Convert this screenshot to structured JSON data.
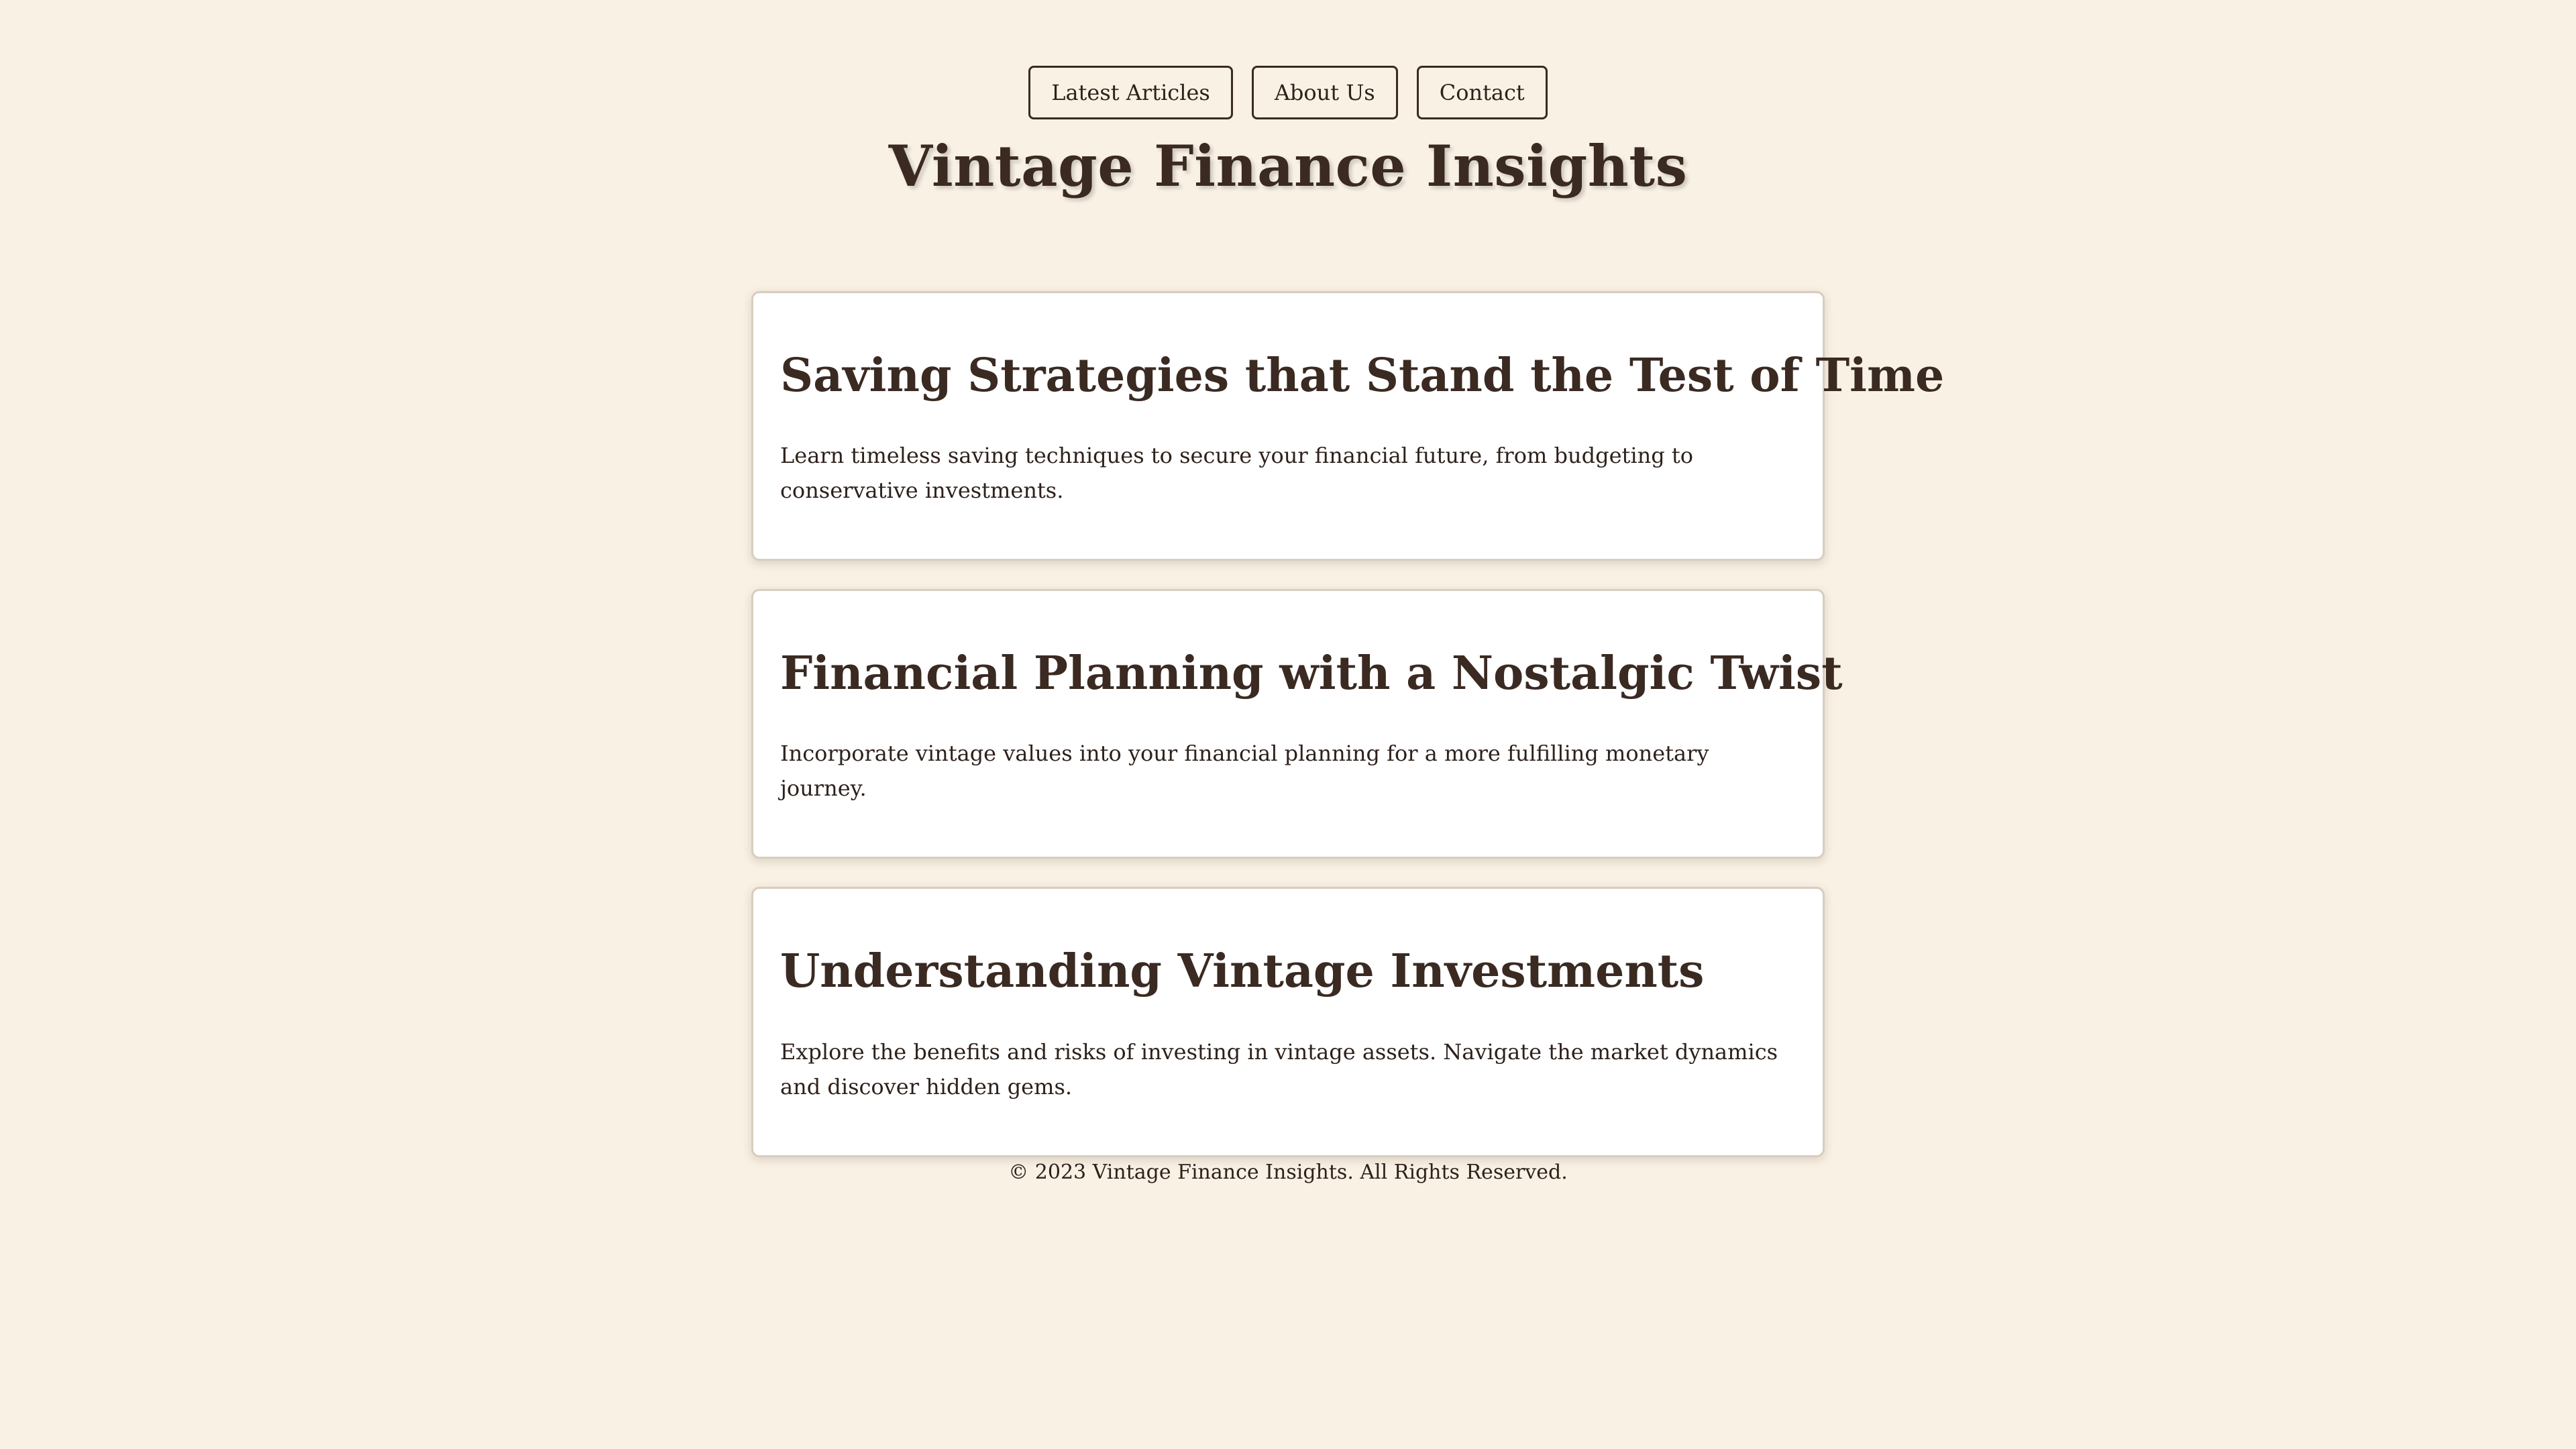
{
  "nav": {
    "items": [
      {
        "label": "Latest Articles"
      },
      {
        "label": "About Us"
      },
      {
        "label": "Contact"
      }
    ]
  },
  "header": {
    "title": "Vintage Finance Insights"
  },
  "articles": [
    {
      "title": "Saving Strategies that Stand the Test of Time",
      "summary": "Learn timeless saving techniques to secure your financial future, from budgeting to conservative investments."
    },
    {
      "title": "Financial Planning with a Nostalgic Twist",
      "summary": "Incorporate vintage values into your financial planning for a more fulfilling monetary journey."
    },
    {
      "title": "Understanding Vintage Investments",
      "summary": "Explore the benefits and risks of investing in vintage assets. Navigate the market dynamics and discover hidden gems."
    }
  ],
  "footer": {
    "text": "© 2023 Vintage Finance Insights. All Rights Reserved."
  },
  "colors": {
    "background": "#f9f1e4",
    "heading": "#3a2a22",
    "card": "#ffffff",
    "card_border": "#d9cdbf"
  }
}
